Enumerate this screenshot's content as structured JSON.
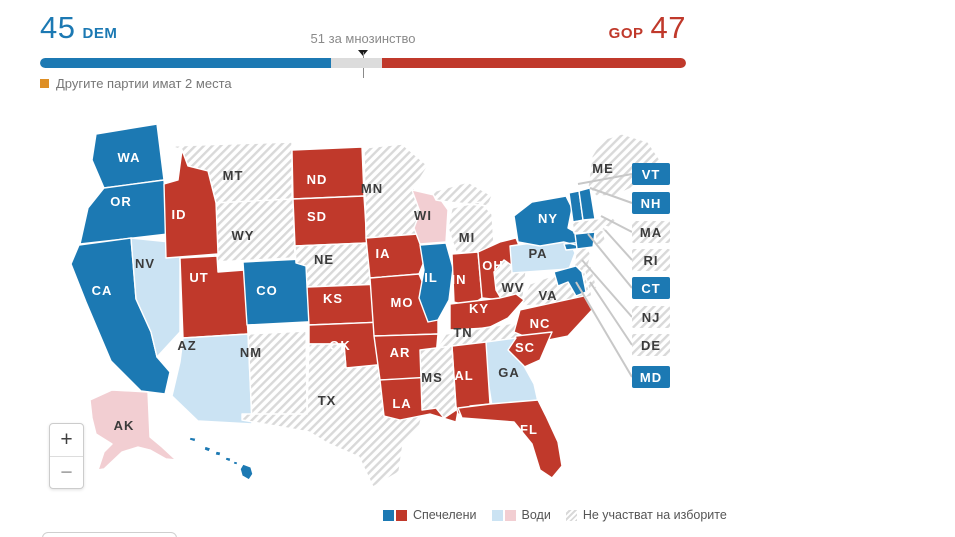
{
  "header": {
    "dem": {
      "seats": "45",
      "party": "DEM"
    },
    "gop": {
      "seats": "47",
      "party": "GOP"
    },
    "majority_label": "51 за мнозинство",
    "others_note": "Другите партии имат 2 места",
    "bar": {
      "dem_pct": 45,
      "gop_pct": 47
    }
  },
  "colors": {
    "dem": "#1c79b3",
    "gop": "#c0392b",
    "dem_lead": "#cbe3f3",
    "gop_lead": "#f2ced2",
    "others": "#de8f25",
    "hatch_stripe": "#d9d9d9",
    "map_border": "#ffffff",
    "leader_line": "#c8c8c8"
  },
  "map": {
    "zoom_in_label": "+",
    "zoom_out_label": "−",
    "states": [
      {
        "id": "WA",
        "label": "WA",
        "status": "dem"
      },
      {
        "id": "OR",
        "label": "OR",
        "status": "dem"
      },
      {
        "id": "CA",
        "label": "CA",
        "status": "dem"
      },
      {
        "id": "NV",
        "label": "NV",
        "status": "dem_lead"
      },
      {
        "id": "ID",
        "label": "ID",
        "status": "gop"
      },
      {
        "id": "MT",
        "label": "MT",
        "status": "out"
      },
      {
        "id": "WY",
        "label": "WY",
        "status": "out"
      },
      {
        "id": "UT",
        "label": "UT",
        "status": "gop"
      },
      {
        "id": "CO",
        "label": "CO",
        "status": "dem"
      },
      {
        "id": "AZ",
        "label": "AZ",
        "status": "dem_lead"
      },
      {
        "id": "NM",
        "label": "NM",
        "status": "out"
      },
      {
        "id": "ND",
        "label": "ND",
        "status": "gop"
      },
      {
        "id": "SD",
        "label": "SD",
        "status": "gop"
      },
      {
        "id": "NE",
        "label": "NE",
        "status": "out"
      },
      {
        "id": "KS",
        "label": "KS",
        "status": "gop"
      },
      {
        "id": "OK",
        "label": "OK",
        "status": "gop"
      },
      {
        "id": "TX",
        "label": "TX",
        "status": "out"
      },
      {
        "id": "MN",
        "label": "MN",
        "status": "out"
      },
      {
        "id": "IA",
        "label": "IA",
        "status": "gop"
      },
      {
        "id": "MO",
        "label": "MO",
        "status": "gop"
      },
      {
        "id": "AR",
        "label": "AR",
        "status": "gop"
      },
      {
        "id": "LA",
        "label": "LA",
        "status": "gop"
      },
      {
        "id": "WI",
        "label": "WI",
        "status": "gop_lead"
      },
      {
        "id": "IL",
        "label": "IL",
        "status": "dem"
      },
      {
        "id": "MI",
        "label": "MI",
        "status": "out"
      },
      {
        "id": "IN",
        "label": "IN",
        "status": "gop"
      },
      {
        "id": "OH",
        "label": "OH",
        "status": "gop"
      },
      {
        "id": "KY",
        "label": "KY",
        "status": "gop"
      },
      {
        "id": "TN",
        "label": "TN",
        "status": "out"
      },
      {
        "id": "MS",
        "label": "MS",
        "status": "out"
      },
      {
        "id": "AL",
        "label": "AL",
        "status": "gop"
      },
      {
        "id": "GA",
        "label": "GA",
        "status": "dem_lead"
      },
      {
        "id": "FL",
        "label": "FL",
        "status": "gop"
      },
      {
        "id": "SC",
        "label": "SC",
        "status": "gop"
      },
      {
        "id": "NC",
        "label": "NC",
        "status": "gop"
      },
      {
        "id": "VA",
        "label": "VA",
        "status": "out"
      },
      {
        "id": "WV",
        "label": "WV",
        "status": "out"
      },
      {
        "id": "PA",
        "label": "PA",
        "status": "dem_lead"
      },
      {
        "id": "NY",
        "label": "NY",
        "status": "dem"
      },
      {
        "id": "NJ",
        "label": "NJ",
        "status": "out"
      },
      {
        "id": "DE",
        "label": "DE",
        "status": "out"
      },
      {
        "id": "MD",
        "label": "MD",
        "status": "dem"
      },
      {
        "id": "CT",
        "label": "CT",
        "status": "dem"
      },
      {
        "id": "RI",
        "label": "RI",
        "status": "out"
      },
      {
        "id": "MA",
        "label": "MA",
        "status": "out"
      },
      {
        "id": "VT",
        "label": "VT",
        "status": "dem"
      },
      {
        "id": "NH",
        "label": "NH",
        "status": "dem"
      },
      {
        "id": "ME",
        "label": "ME",
        "status": "out"
      },
      {
        "id": "AK",
        "label": "AK",
        "status": "gop_lead"
      },
      {
        "id": "HI",
        "label": "HI",
        "status": "dem"
      }
    ]
  },
  "legend": {
    "won": "Спечелени",
    "leads": "Води",
    "not_participating": "Не участват на изборите"
  }
}
